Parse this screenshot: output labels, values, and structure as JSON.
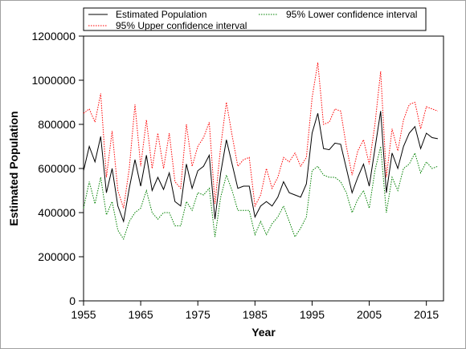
{
  "chart_data": {
    "type": "line",
    "x_label": "Year",
    "y_label": "Estimated Population",
    "x": [
      1955,
      1956,
      1957,
      1958,
      1959,
      1960,
      1961,
      1962,
      1963,
      1964,
      1965,
      1966,
      1967,
      1968,
      1969,
      1970,
      1971,
      1972,
      1973,
      1974,
      1975,
      1976,
      1977,
      1978,
      1979,
      1980,
      1981,
      1982,
      1983,
      1984,
      1985,
      1986,
      1987,
      1988,
      1989,
      1990,
      1991,
      1992,
      1993,
      1994,
      1995,
      1996,
      1997,
      1998,
      1999,
      2000,
      2001,
      2002,
      2003,
      2004,
      2005,
      2006,
      2007,
      2008,
      2009,
      2010,
      2011,
      2012,
      2013,
      2014,
      2015,
      2016,
      2017
    ],
    "series": [
      {
        "name": "Estimated Population",
        "color": "#000000",
        "linestyle": "solid",
        "values": [
          590000,
          700000,
          630000,
          745000,
          490000,
          600000,
          430000,
          360000,
          510000,
          640000,
          520000,
          660000,
          500000,
          560000,
          505000,
          580000,
          450000,
          430000,
          620000,
          510000,
          590000,
          610000,
          660000,
          370000,
          580000,
          730000,
          620000,
          510000,
          520000,
          520000,
          380000,
          430000,
          450000,
          430000,
          470000,
          540000,
          490000,
          480000,
          470000,
          530000,
          760000,
          850000,
          690000,
          685000,
          715000,
          710000,
          600000,
          490000,
          560000,
          620000,
          520000,
          690000,
          860000,
          490000,
          670000,
          600000,
          700000,
          760000,
          790000,
          690000,
          760000,
          740000,
          735000
        ]
      },
      {
        "name": "95% Lower confidence interval",
        "color": "#008000",
        "linestyle": "dotted",
        "values": [
          420000,
          540000,
          440000,
          560000,
          390000,
          450000,
          320000,
          280000,
          360000,
          400000,
          420000,
          500000,
          400000,
          370000,
          400000,
          400000,
          340000,
          340000,
          450000,
          410000,
          490000,
          480000,
          510000,
          290000,
          470000,
          570000,
          500000,
          410000,
          410000,
          410000,
          300000,
          360000,
          300000,
          350000,
          380000,
          430000,
          360000,
          290000,
          330000,
          380000,
          590000,
          610000,
          570000,
          560000,
          560000,
          540000,
          490000,
          400000,
          460000,
          500000,
          420000,
          590000,
          700000,
          400000,
          560000,
          500000,
          600000,
          620000,
          670000,
          580000,
          630000,
          600000,
          610000
        ]
      },
      {
        "name": "95% Upper confidence interval",
        "color": "#ff0000",
        "linestyle": "dotted",
        "values": [
          850000,
          870000,
          810000,
          940000,
          560000,
          770000,
          500000,
          420000,
          600000,
          890000,
          610000,
          820000,
          600000,
          760000,
          600000,
          760000,
          540000,
          510000,
          800000,
          610000,
          700000,
          740000,
          810000,
          440000,
          700000,
          900000,
          750000,
          610000,
          640000,
          650000,
          430000,
          480000,
          600000,
          510000,
          560000,
          650000,
          630000,
          670000,
          610000,
          650000,
          920000,
          1080000,
          800000,
          810000,
          870000,
          860000,
          700000,
          570000,
          680000,
          730000,
          620000,
          800000,
          1040000,
          560000,
          780000,
          680000,
          820000,
          890000,
          900000,
          780000,
          880000,
          870000,
          860000
        ]
      }
    ],
    "xlim": [
      1955,
      2018
    ],
    "ylim": [
      0,
      1200000
    ],
    "xticks": [
      1955,
      1965,
      1975,
      1985,
      1995,
      2005,
      2015
    ],
    "yticks": [
      0,
      200000,
      400000,
      600000,
      800000,
      1000000,
      1200000
    ],
    "legend": "top",
    "grid": false
  }
}
